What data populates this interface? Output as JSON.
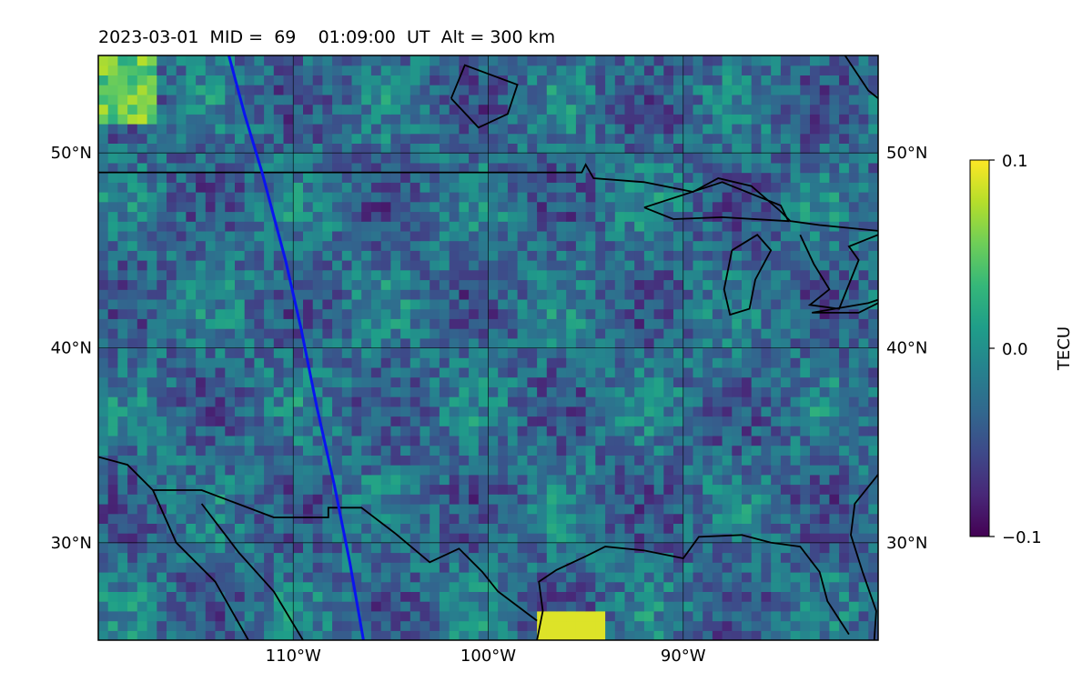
{
  "title": {
    "date": "2023-03-01",
    "mid_label": "MID =",
    "mid_value": "69",
    "time": "01:09:00",
    "time_unit": "UT",
    "alt_label": "Alt = 300 km"
  },
  "map": {
    "lon_range": [
      -120,
      -80
    ],
    "lat_range": [
      25,
      55
    ],
    "lon_ticks": [
      {
        "value": -110,
        "label": "110°W"
      },
      {
        "value": -100,
        "label": "100°W"
      },
      {
        "value": -90,
        "label": "90°W"
      }
    ],
    "lat_ticks": [
      {
        "value": 30,
        "label": "30°N"
      },
      {
        "value": 40,
        "label": "40°N"
      },
      {
        "value": 50,
        "label": "50°N"
      }
    ],
    "grid": true,
    "coastline_color": "#000000",
    "track_color": "#0a14f0",
    "track_points": [
      [
        -113.3,
        55.0
      ],
      [
        -112.5,
        52.0
      ],
      [
        -111.6,
        49.0
      ],
      [
        -110.4,
        44.5
      ],
      [
        -109.6,
        41.0
      ],
      [
        -108.8,
        37.0
      ],
      [
        -107.9,
        33.0
      ],
      [
        -107.1,
        29.0
      ],
      [
        -106.4,
        25.0
      ]
    ]
  },
  "colorbar": {
    "label": "TECU",
    "min": -0.1,
    "max": 0.1,
    "ticks": [
      {
        "value": 0.1,
        "label": "0.1"
      },
      {
        "value": 0.0,
        "label": "0.0"
      },
      {
        "value": -0.1,
        "label": "−0.1"
      }
    ],
    "colormap": "viridis",
    "colors": [
      "#440154",
      "#482878",
      "#3e4989",
      "#31688e",
      "#26828e",
      "#1f9e89",
      "#35b779",
      "#6ece58",
      "#b5de2b",
      "#fde725"
    ]
  }
}
